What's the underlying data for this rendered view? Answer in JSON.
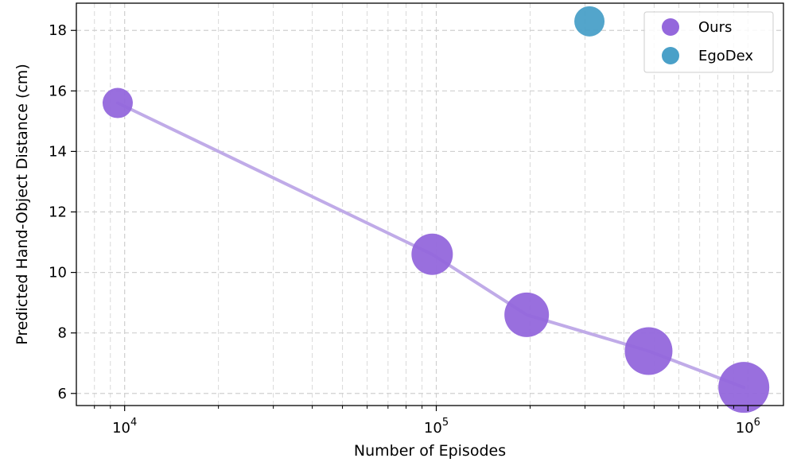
{
  "chart_data": {
    "type": "scatter",
    "title": "",
    "xlabel": "Number of Episodes",
    "ylabel": "Predicted Hand-Object Distance (cm)",
    "xscale": "log",
    "xlim": [
      7000,
      1300000
    ],
    "ylim": [
      5.6,
      18.9
    ],
    "x_ticks": [
      10000,
      100000,
      1000000
    ],
    "x_tick_labels": [
      {
        "base": "10",
        "exp": "4"
      },
      {
        "base": "10",
        "exp": "5"
      },
      {
        "base": "10",
        "exp": "6"
      }
    ],
    "y_ticks": [
      6,
      8,
      10,
      12,
      14,
      16,
      18
    ],
    "y_tick_labels": [
      "6",
      "8",
      "10",
      "12",
      "14",
      "16",
      "18"
    ],
    "grid": true,
    "legend_position": "top-right",
    "series": [
      {
        "name": "Ours",
        "color": "#9467dc",
        "line_color": "#c0abe8",
        "connected": true,
        "points": [
          {
            "x": 9500,
            "y": 15.6,
            "marker_size": "small"
          },
          {
            "x": 97000,
            "y": 10.6,
            "marker_size": "medium"
          },
          {
            "x": 195000,
            "y": 8.6,
            "marker_size": "medium-large"
          },
          {
            "x": 480000,
            "y": 7.4,
            "marker_size": "large"
          },
          {
            "x": 970000,
            "y": 6.2,
            "marker_size": "largest"
          }
        ]
      },
      {
        "name": "EgoDex",
        "color": "#4aa0c8",
        "connected": false,
        "points": [
          {
            "x": 310000,
            "y": 18.3,
            "marker_size": "small"
          }
        ]
      }
    ]
  }
}
